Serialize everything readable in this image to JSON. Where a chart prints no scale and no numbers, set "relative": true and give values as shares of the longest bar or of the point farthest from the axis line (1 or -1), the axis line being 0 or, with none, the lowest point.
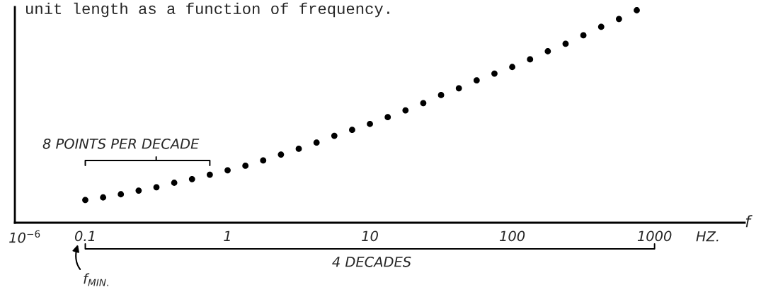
{
  "chart_data": {
    "type": "scatter",
    "title": "unit length as a function of frequency.",
    "xlabel": "f",
    "annotations": [
      "10$^{−6}$",
      "8 POINTS PER DECADE",
      "4 DECADES",
      "f$_{MIN.}$",
      "HZ."
    ],
    "relative": true,
    "log": "x",
    "marker": "circle",
    "grid": false,
    "legend": false,
    "tick_labels": "x",
    "xlim": [
      0.032,
      4300
    ],
    "xticks": [
      {
        "value": 0.1,
        "label": "0.1"
      },
      1,
      10,
      100,
      1000
    ],
    "x": [
      0.1,
      0.1334,
      0.1778,
      0.2371,
      0.3162,
      0.4217,
      0.5623,
      0.7499,
      1,
      1.334,
      1.778,
      2.371,
      3.162,
      4.217,
      5.623,
      7.499,
      10,
      13.34,
      17.78,
      23.71,
      31.62,
      42.17,
      56.23,
      74.99,
      100,
      133.4,
      177.8,
      237.1,
      316.2,
      421.7,
      562.3,
      749.9
    ],
    "series": [
      {
        "color": "#000000",
        "values": [
          0.107,
          0.119,
          0.134,
          0.151,
          0.167,
          0.188,
          0.205,
          0.226,
          0.247,
          0.268,
          0.293,
          0.321,
          0.348,
          0.377,
          0.409,
          0.437,
          0.465,
          0.497,
          0.529,
          0.563,
          0.601,
          0.633,
          0.67,
          0.702,
          0.733,
          0.769,
          0.807,
          0.842,
          0.882,
          0.922,
          0.959,
          1
        ]
      }
    ]
  }
}
